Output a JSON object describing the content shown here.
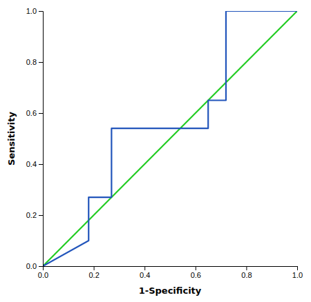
{
  "chart_data": {
    "type": "line",
    "xlabel": "1-Specificity",
    "ylabel": "Sensitivity",
    "series": [
      {
        "x": [
          0.0,
          1.0
        ],
        "values": [
          0.0,
          1.0
        ],
        "color": "#22cc22"
      },
      {
        "x": [
          0.0,
          0.18,
          0.18,
          0.27,
          0.27,
          0.65,
          0.65,
          0.72,
          0.72,
          1.0
        ],
        "values": [
          0.0,
          0.1,
          0.27,
          0.27,
          0.54,
          0.54,
          0.65,
          0.65,
          1.0,
          1.0
        ],
        "color": "#2255bb"
      }
    ],
    "xlim": [
      0.0,
      1.0
    ],
    "ylim": [
      0.0,
      1.0
    ],
    "xticks": [
      {
        "value": 0.0,
        "label": "0.0"
      },
      0.2,
      0.4,
      0.6,
      0.8,
      {
        "value": 1.0,
        "label": "1.0"
      }
    ],
    "yticks": [
      {
        "value": 0.0,
        "label": "0.0"
      },
      0.2,
      0.4,
      0.6,
      0.8,
      {
        "value": 1.0,
        "label": "1.0"
      }
    ],
    "grid": false
  }
}
